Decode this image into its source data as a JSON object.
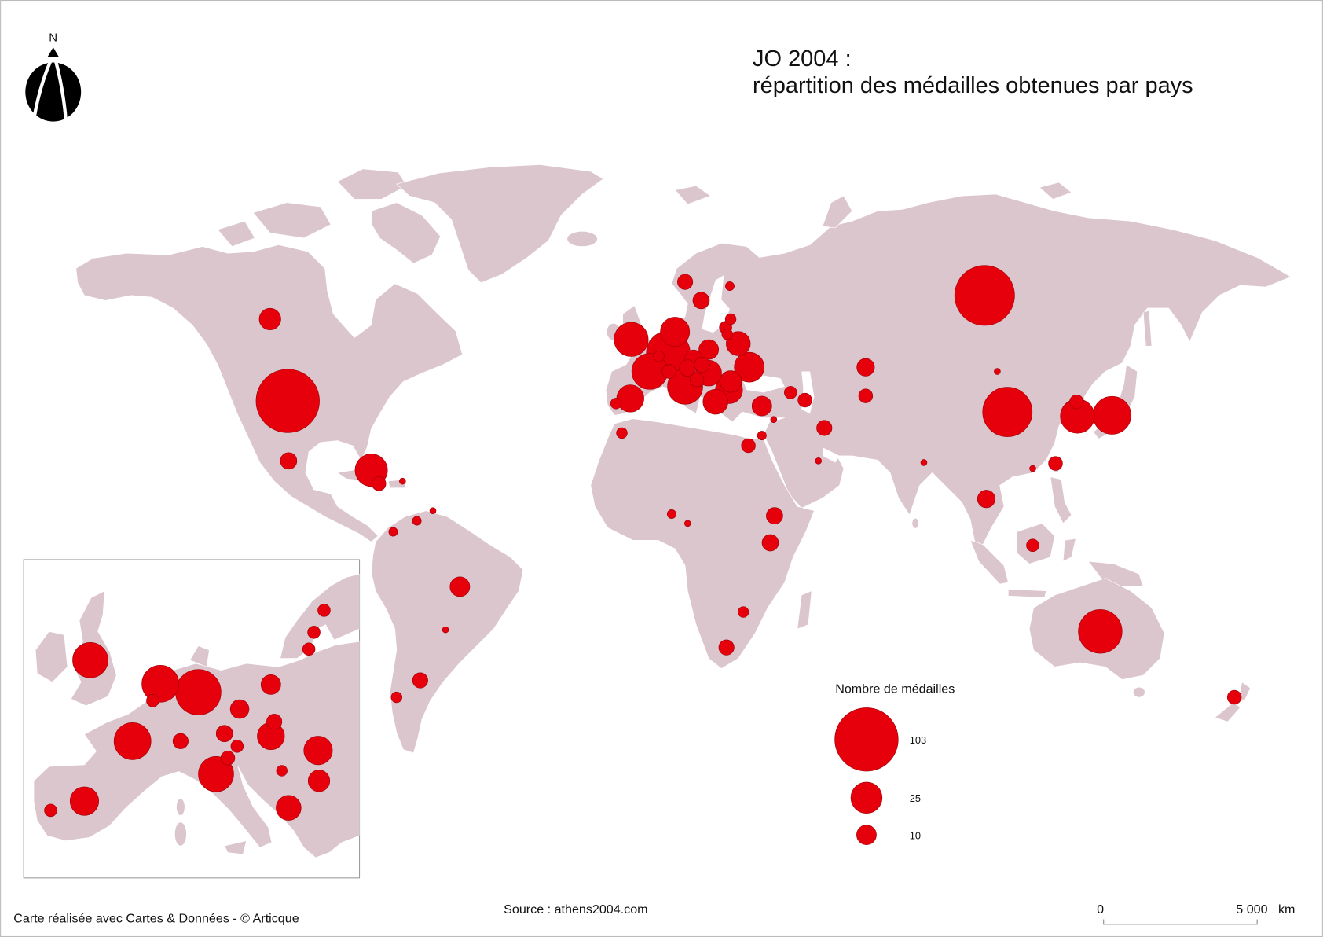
{
  "title": {
    "line1": "JO 2004 :",
    "line2": "répartition des médailles obtenues par pays"
  },
  "north_label": "N",
  "legend": {
    "title": "Nombre de médailles",
    "items": [
      {
        "label": "103",
        "value": 103
      },
      {
        "label": "25",
        "value": 25
      },
      {
        "label": "10",
        "value": 10
      }
    ]
  },
  "source": "Source : athens2004.com",
  "credit": "Carte réalisée avec Cartes & Données - © Articque",
  "scale": {
    "start": "0",
    "end": "5 000",
    "unit": "km"
  },
  "colors": {
    "land": "#dcc6ce",
    "marker": "#e5000b",
    "marker_stroke": "#9e0008",
    "background": "#ffffff"
  },
  "world_markers": [
    103,
    92,
    63,
    49,
    49,
    37,
    33,
    32,
    30,
    30,
    27,
    23,
    22,
    19,
    19,
    17,
    16,
    15,
    12,
    12,
    10,
    10,
    10,
    8,
    8,
    8,
    7,
    7,
    7,
    7,
    7,
    6,
    6,
    6,
    6,
    6,
    5,
    5,
    5,
    5,
    5,
    5,
    5,
    5,
    5,
    4,
    4,
    4,
    3,
    3,
    3,
    3,
    3,
    3,
    3,
    2,
    2,
    2,
    2,
    1,
    2,
    1,
    1,
    1,
    1,
    1,
    1,
    1,
    1
  ],
  "inset_markers": [
    32,
    35,
    53,
    4,
    35,
    21,
    4,
    6,
    32,
    5,
    7,
    9,
    10,
    19,
    6,
    4,
    3,
    21,
    12,
    16,
    4,
    4,
    4
  ]
}
